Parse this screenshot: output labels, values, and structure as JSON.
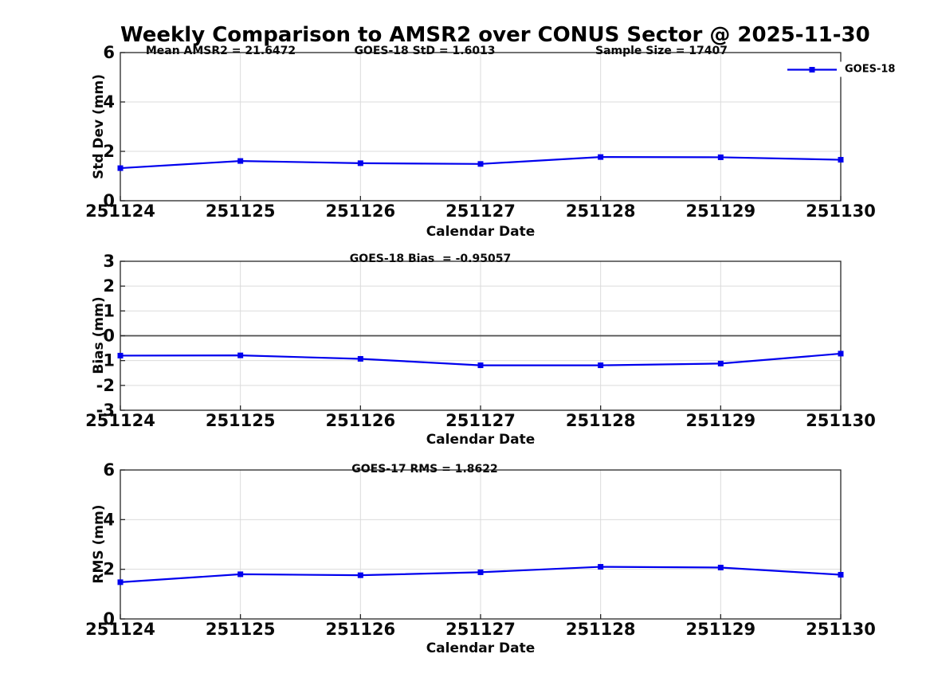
{
  "title": "Weekly Comparison to AMSR2 over CONUS Sector @ 2025-11-30",
  "xlabel": "Calendar Date",
  "legend": {
    "label": "GOES-18"
  },
  "colors": {
    "line": "#0000EE",
    "grid": "#DBDBDB",
    "axis": "#262626",
    "zero_line": "#4D4D4D",
    "text": "#0A0A0A"
  },
  "categories": [
    "251124",
    "251125",
    "251126",
    "251127",
    "251128",
    "251129",
    "251130"
  ],
  "chart_data": [
    {
      "type": "line",
      "name": "std-dev-panel",
      "ylabel": "Std Dev (mm)",
      "ylim": [
        0,
        6
      ],
      "yticks": [
        0,
        2,
        4,
        6
      ],
      "grid": true,
      "legend_position": "northeast",
      "annotations": [
        {
          "text": "Mean AMSR2 = 21.6472"
        },
        {
          "text": "GOES-18 StD = 1.6013"
        },
        {
          "text": "Sample Size = 17407"
        }
      ],
      "series": [
        {
          "name": "GOES-18",
          "marker": "square",
          "values": [
            1.32,
            1.61,
            1.52,
            1.49,
            1.77,
            1.76,
            1.66
          ]
        }
      ]
    },
    {
      "type": "line",
      "name": "bias-panel",
      "ylabel": "Bias (mm)",
      "ylim": [
        -3,
        3
      ],
      "yticks": [
        -3,
        -2,
        -1,
        0,
        1,
        2,
        3
      ],
      "grid": true,
      "zero_line": true,
      "annotations": [
        {
          "text": "GOES-18 Bias  = -0.95057"
        }
      ],
      "series": [
        {
          "name": "GOES-18",
          "marker": "square",
          "values": [
            -0.8,
            -0.79,
            -0.93,
            -1.19,
            -1.19,
            -1.12,
            -0.72
          ]
        }
      ]
    },
    {
      "type": "line",
      "name": "rms-panel",
      "ylabel": "RMS (mm)",
      "ylim": [
        0,
        6
      ],
      "yticks": [
        0,
        2,
        4,
        6
      ],
      "grid": true,
      "annotations": [
        {
          "text": "GOES-17 RMS = 1.8622"
        }
      ],
      "series": [
        {
          "name": "GOES-18",
          "marker": "square",
          "values": [
            1.48,
            1.8,
            1.76,
            1.88,
            2.1,
            2.07,
            1.78
          ]
        }
      ]
    }
  ]
}
